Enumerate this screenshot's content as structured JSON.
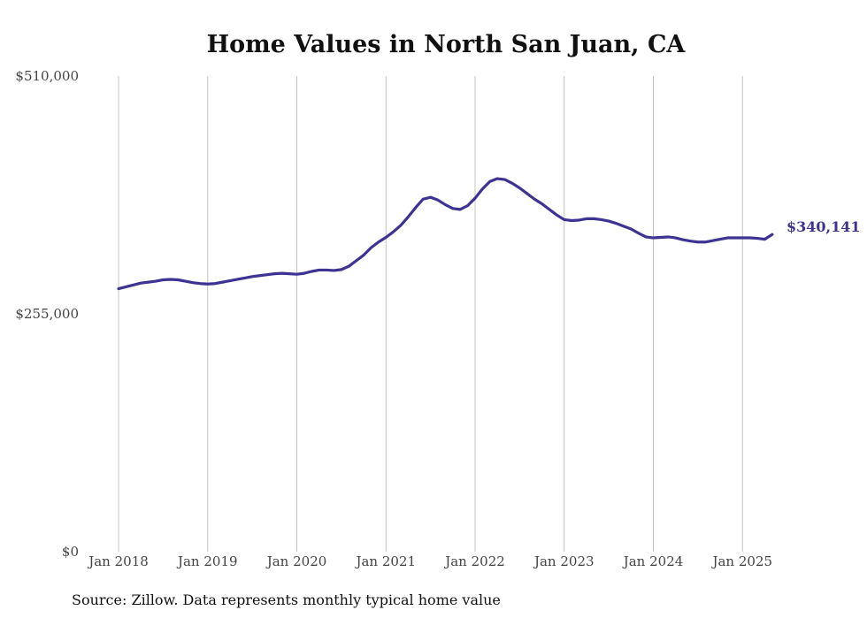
{
  "chart_data": {
    "type": "line",
    "title": "Home Values in North San Juan, CA",
    "xlabel": "",
    "ylabel": "",
    "x_ticks": [
      "Jan 2018",
      "Jan 2019",
      "Jan 2020",
      "Jan 2021",
      "Jan 2022",
      "Jan 2023",
      "Jan 2024",
      "Jan 2025"
    ],
    "y_ticks": [
      "$510,000",
      "$255,000",
      "$0"
    ],
    "ylim": [
      0,
      510000
    ],
    "grid": "vertical",
    "end_label": "$340,141",
    "line_color": "#3d3393",
    "source": "Source: Zillow. Data represents monthly typical home value",
    "series": [
      {
        "x": [
          "2018-01",
          "2018-02",
          "2018-03",
          "2018-04",
          "2018-05",
          "2018-06",
          "2018-07",
          "2018-08",
          "2018-09",
          "2018-10",
          "2018-11",
          "2018-12",
          "2019-01",
          "2019-02",
          "2019-03",
          "2019-04",
          "2019-05",
          "2019-06",
          "2019-07",
          "2019-08",
          "2019-09",
          "2019-10",
          "2019-11",
          "2019-12",
          "2020-01",
          "2020-02",
          "2020-03",
          "2020-04",
          "2020-05",
          "2020-06",
          "2020-07",
          "2020-08",
          "2020-09",
          "2020-10",
          "2020-11",
          "2020-12",
          "2021-01",
          "2021-02",
          "2021-03",
          "2021-04",
          "2021-05",
          "2021-06",
          "2021-07",
          "2021-08",
          "2021-09",
          "2021-10",
          "2021-11",
          "2021-12",
          "2022-01",
          "2022-02",
          "2022-03",
          "2022-04",
          "2022-05",
          "2022-06",
          "2022-07",
          "2022-08",
          "2022-09",
          "2022-10",
          "2022-11",
          "2022-12",
          "2023-01",
          "2023-02",
          "2023-03",
          "2023-04",
          "2023-05",
          "2023-06",
          "2023-07",
          "2023-08",
          "2023-09",
          "2023-10",
          "2023-11",
          "2023-12",
          "2024-01",
          "2024-02",
          "2024-03",
          "2024-04",
          "2024-05",
          "2024-06",
          "2024-07",
          "2024-08",
          "2024-09",
          "2024-10",
          "2024-11",
          "2024-12",
          "2025-01",
          "2025-02",
          "2025-03",
          "2025-04",
          "2025-05"
        ],
        "values": [
          282000,
          284000,
          286000,
          288000,
          289000,
          290000,
          291500,
          292000,
          291500,
          290000,
          288500,
          287500,
          287000,
          287500,
          289000,
          290500,
          292000,
          293500,
          295000,
          296000,
          297000,
          298000,
          298500,
          298000,
          297500,
          298500,
          300500,
          302000,
          302000,
          301500,
          302500,
          306000,
          312000,
          318000,
          326000,
          332000,
          337000,
          343000,
          350000,
          359000,
          369000,
          378000,
          380000,
          377000,
          372000,
          368000,
          367000,
          371000,
          379000,
          389000,
          397000,
          400000,
          399000,
          395000,
          390000,
          384000,
          378000,
          373000,
          367000,
          361000,
          356000,
          355000,
          355500,
          357000,
          357000,
          356000,
          354500,
          352000,
          349000,
          346000,
          341500,
          337500,
          336500,
          337000,
          337500,
          336500,
          334500,
          333000,
          332000,
          332000,
          333500,
          335000,
          336500,
          336500,
          336500,
          336500,
          336000,
          335000,
          340141
        ]
      }
    ]
  }
}
